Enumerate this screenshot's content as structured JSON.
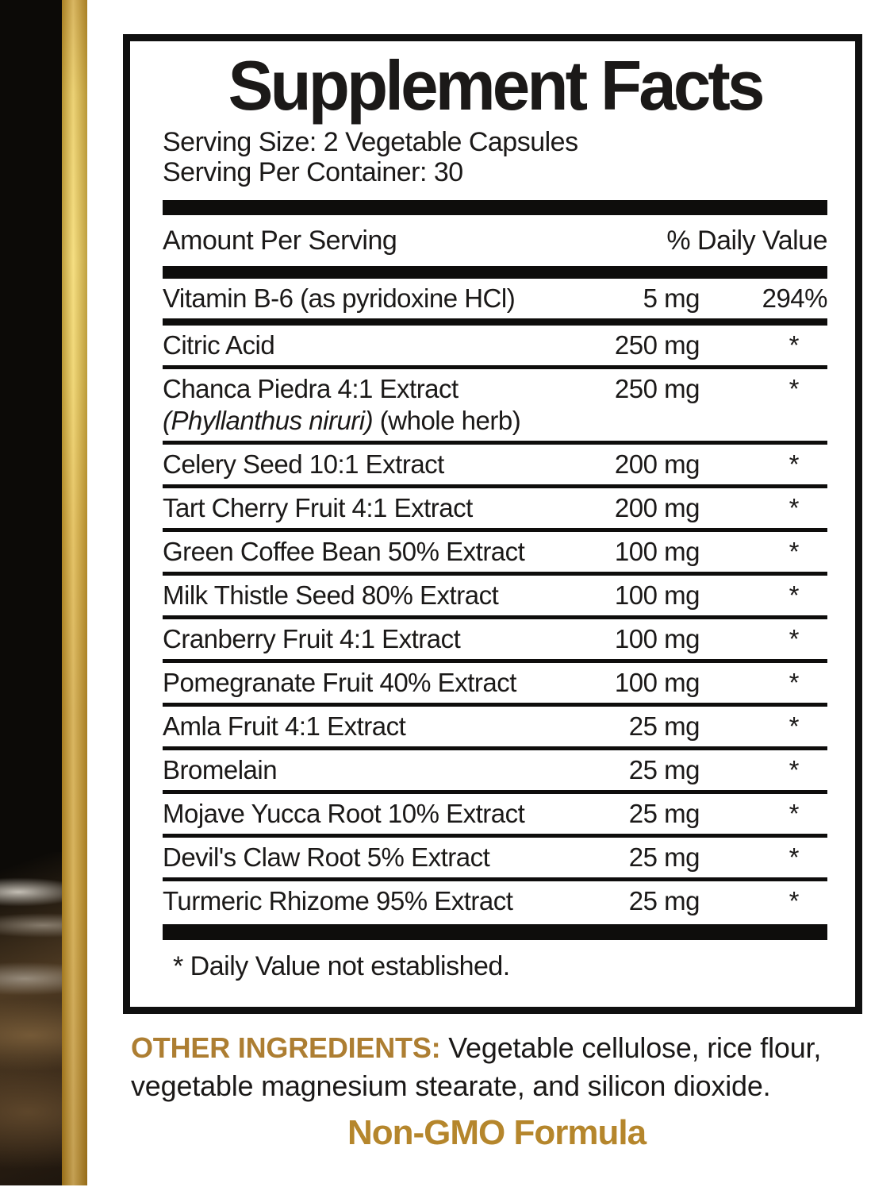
{
  "colors": {
    "gold_accent": "#b5862c",
    "gold_label": "#ad7e32",
    "text_black": "#1b1918",
    "strip_gold_bright": "#f0d464",
    "strip_gold_dark": "#a97a20",
    "strip_black": "#0c0a07"
  },
  "panel": {
    "title": "Supplement Facts",
    "serving_size": "Serving Size: 2 Vegetable Capsules",
    "serving_per_container": "Serving Per Container: 30",
    "header": {
      "amount_label": "Amount Per Serving",
      "dv_label": "% Daily Value"
    },
    "rows": [
      {
        "name": "Vitamin B-6 (as pyridoxine HCl)",
        "amount": "5 mg",
        "dv": "294%",
        "sep": "medium"
      },
      {
        "name": "Citric Acid",
        "amount": "250 mg",
        "dv": "*",
        "sep": "thin"
      },
      {
        "name": "Chanca Piedra 4:1 Extract",
        "sub_italic": "(Phyllanthus niruri)",
        "sub_plain": " (whole herb)",
        "amount": "250 mg",
        "dv": "*",
        "sep": "thin"
      },
      {
        "name": "Celery Seed 10:1 Extract",
        "amount": "200 mg",
        "dv": "*",
        "sep": "thin"
      },
      {
        "name": "Tart Cherry Fruit 4:1 Extract",
        "amount": "200 mg",
        "dv": "*",
        "sep": "thin"
      },
      {
        "name": "Green Coffee Bean 50% Extract",
        "amount": "100 mg",
        "dv": "*",
        "sep": "thin"
      },
      {
        "name": "Milk Thistle Seed 80% Extract",
        "amount": "100 mg",
        "dv": "*",
        "sep": "thin"
      },
      {
        "name": "Cranberry Fruit 4:1 Extract",
        "amount": "100 mg",
        "dv": "*",
        "sep": "thin"
      },
      {
        "name": "Pomegranate Fruit 40% Extract",
        "amount": "100 mg",
        "dv": "*",
        "sep": "thin"
      },
      {
        "name": "Amla Fruit 4:1 Extract",
        "amount": "25 mg",
        "dv": "*",
        "sep": "thin"
      },
      {
        "name": "Bromelain",
        "amount": "25 mg",
        "dv": "*",
        "sep": "thin"
      },
      {
        "name": "Mojave Yucca Root 10% Extract",
        "amount": "25 mg",
        "dv": "*",
        "sep": "thin"
      },
      {
        "name": "Devil's Claw Root 5% Extract",
        "amount": "25 mg",
        "dv": "*",
        "sep": "thin"
      },
      {
        "name": "Turmeric Rhizome 95% Extract",
        "amount": "25 mg",
        "dv": "*",
        "sep": "none"
      }
    ],
    "footnote": "* Daily Value not established."
  },
  "bottom": {
    "other_ingredients_label": "OTHER INGREDIENTS:",
    "other_ingredients_text": " Vegetable cellulose, rice flour, vegetable magnesium stearate, and silicon dioxide.",
    "non_gmo": "Non-GMO Formula"
  }
}
